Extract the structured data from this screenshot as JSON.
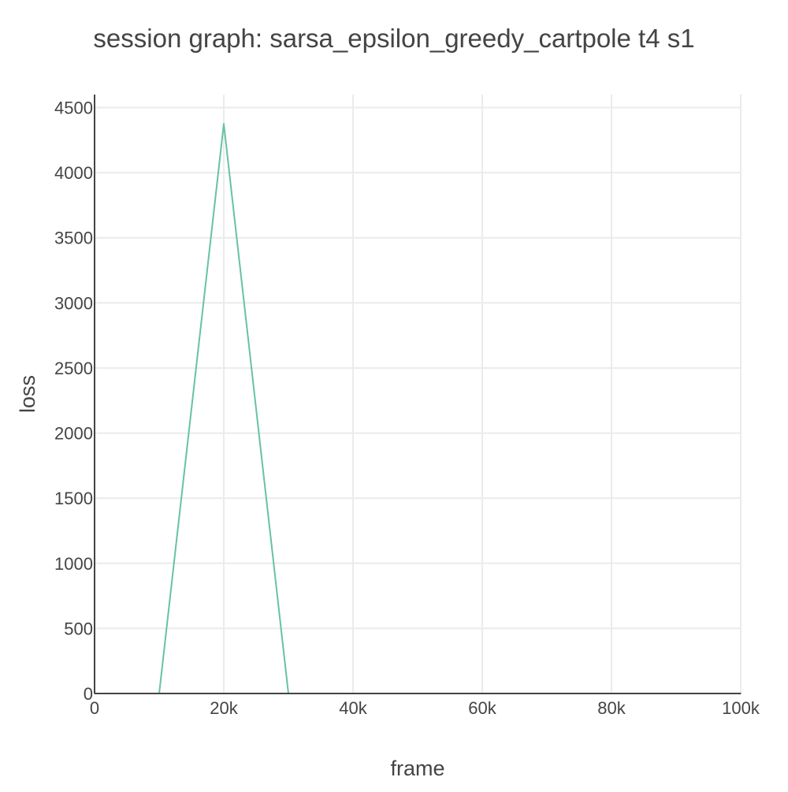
{
  "chart_data": {
    "type": "line",
    "title": "session graph: sarsa_epsilon_greedy_cartpole t4 s1",
    "xlabel": "frame",
    "ylabel": "loss",
    "xlim": [
      0,
      100000
    ],
    "ylim": [
      0,
      4600
    ],
    "x_ticks": [
      {
        "value": 0,
        "label": "0"
      },
      {
        "value": 20000,
        "label": "20k"
      },
      {
        "value": 40000,
        "label": "40k"
      },
      {
        "value": 60000,
        "label": "60k"
      },
      {
        "value": 80000,
        "label": "80k"
      },
      {
        "value": 100000,
        "label": "100k"
      }
    ],
    "y_ticks": [
      {
        "value": 0,
        "label": "0"
      },
      {
        "value": 500,
        "label": "500"
      },
      {
        "value": 1000,
        "label": "1000"
      },
      {
        "value": 1500,
        "label": "1500"
      },
      {
        "value": 2000,
        "label": "2000"
      },
      {
        "value": 2500,
        "label": "2500"
      },
      {
        "value": 3000,
        "label": "3000"
      },
      {
        "value": 3500,
        "label": "3500"
      },
      {
        "value": 4000,
        "label": "4000"
      },
      {
        "value": 4500,
        "label": "4500"
      }
    ],
    "grid": true,
    "legend": false,
    "series": [
      {
        "color": "#66c2a5",
        "x": [
          0,
          10000,
          20000,
          30000,
          40000,
          50000,
          60000,
          70000,
          80000,
          90000,
          100000
        ],
        "y": [
          0,
          0,
          4375,
          0,
          0,
          0,
          0,
          0,
          0,
          0,
          0
        ]
      }
    ]
  }
}
